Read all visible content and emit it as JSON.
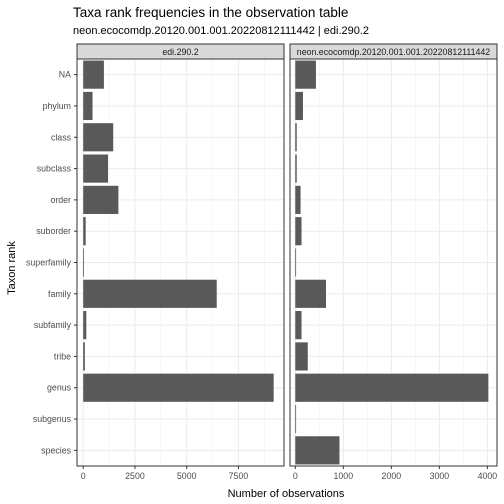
{
  "chart_data": [
    {
      "type": "bar",
      "orientation": "horizontal",
      "title": "Taxa rank frequencies in the observation table",
      "subtitle": "neon.ecocomdp.20120.001.001.20220812111442 | edi.290.2",
      "facet_label": "edi.290.2",
      "xlabel": "Number of observations",
      "ylabel": "Taxon rank",
      "categories": [
        "NA",
        "phylum",
        "class",
        "subclass",
        "order",
        "suborder",
        "superfamily",
        "family",
        "subfamily",
        "tribe",
        "genus",
        "subgenus",
        "species"
      ],
      "values": [
        1000,
        450,
        1450,
        1200,
        1700,
        120,
        10,
        6450,
        150,
        80,
        9200,
        0,
        0
      ],
      "xlim": [
        -300,
        9700
      ],
      "xticks": [
        0,
        2500,
        5000,
        7500
      ],
      "xtick_labels": [
        "0",
        "2500",
        "5000",
        "7500"
      ],
      "bar_color": "#595959",
      "grid": true
    },
    {
      "type": "bar",
      "orientation": "horizontal",
      "facet_label": "neon.ecocomdp.20120.001.001.20220812111442",
      "xlabel": "Number of observations",
      "ylabel": "Taxon rank",
      "categories": [
        "NA",
        "phylum",
        "class",
        "subclass",
        "order",
        "suborder",
        "superfamily",
        "family",
        "subfamily",
        "tribe",
        "genus",
        "subgenus",
        "species"
      ],
      "values": [
        430,
        160,
        30,
        30,
        110,
        130,
        10,
        640,
        130,
        260,
        4020,
        10,
        920
      ],
      "xlim": [
        -110,
        4200
      ],
      "xticks": [
        0,
        1000,
        2000,
        3000,
        4000
      ],
      "xtick_labels": [
        "0",
        "1000",
        "2000",
        "3000",
        "4000"
      ],
      "bar_color": "#595959",
      "grid": true
    }
  ]
}
